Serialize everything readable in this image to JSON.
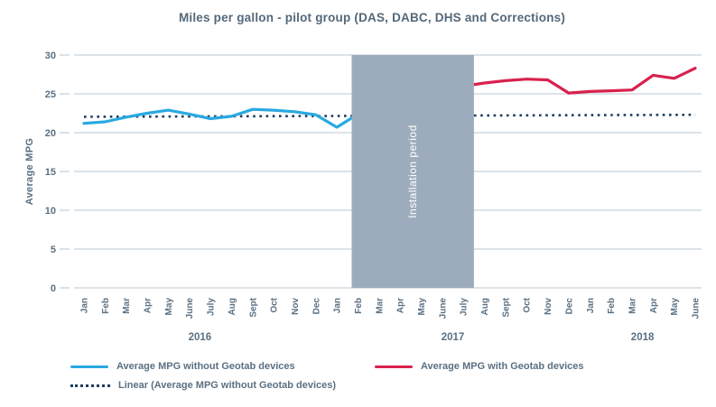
{
  "title": "Miles per gallon - pilot group (DAS, DABC, DHS and Corrections)",
  "y_axis_label": "Average MPG",
  "legend": {
    "items": [
      {
        "label": "Average MPG without Geotab devices",
        "style": "solid",
        "color_key": "blue"
      },
      {
        "label": "Average MPG with Geotab devices",
        "style": "solid",
        "color_key": "red"
      },
      {
        "label": "Linear (Average MPG without Geotab devices)",
        "style": "dotted",
        "color_key": "navy"
      }
    ]
  },
  "colors": {
    "blue": "#29A9E1",
    "red": "#D8214E",
    "navy": "#1D3C5F",
    "band": "#9DACBD",
    "grid": "#C6D2DC",
    "text": "#5A7082",
    "band_text": "#FFFFFF",
    "background": "#FFFFFF"
  },
  "chart_data": {
    "type": "line",
    "title": "Miles per gallon - pilot group (DAS, DABC, DHS and Corrections)",
    "ylabel": "Average MPG",
    "xlabel": "",
    "ylim": [
      0,
      30
    ],
    "y_ticks": [
      0,
      5,
      10,
      15,
      20,
      25,
      30
    ],
    "grid": "horizontal",
    "legend_position": "bottom",
    "categories": [
      "Jan",
      "Feb",
      "Mar",
      "Apr",
      "May",
      "June",
      "July",
      "Aug",
      "Sept",
      "Oct",
      "Nov",
      "Dec",
      "Jan",
      "Feb",
      "Mar",
      "Apr",
      "May",
      "June",
      "July",
      "Aug",
      "Sept",
      "Oct",
      "Nov",
      "Dec",
      "Jan",
      "Feb",
      "Mar",
      "Apr",
      "May",
      "June"
    ],
    "year_groups": [
      {
        "label": "2016",
        "start_index": 0,
        "end_index": 11
      },
      {
        "label": "2017",
        "start_index": 12,
        "end_index": 23
      },
      {
        "label": "2018",
        "start_index": 24,
        "end_index": 29
      }
    ],
    "series": [
      {
        "name": "Average MPG without Geotab devices",
        "color_key": "blue",
        "style": "solid",
        "start_index": 0,
        "values": [
          21.2,
          21.4,
          22.0,
          22.5,
          22.9,
          22.4,
          21.8,
          22.1,
          23.0,
          22.9,
          22.7,
          22.3,
          20.7,
          22.4
        ]
      },
      {
        "name": "Average MPG with Geotab devices",
        "color_key": "red",
        "style": "solid",
        "start_index": 18,
        "values": [
          26.0,
          26.4,
          26.7,
          26.9,
          26.8,
          25.1,
          25.3,
          25.4,
          25.5,
          27.4,
          27.0,
          28.3
        ]
      },
      {
        "name": "Linear (Average MPG without Geotab devices)",
        "color_key": "navy",
        "style": "dotted",
        "start_index": 0,
        "end_index": 29,
        "endpoints": [
          22.05,
          22.3
        ]
      }
    ],
    "annotation_band": {
      "label": "Installation period",
      "from_index": 12.7,
      "to_index": 18.5
    }
  }
}
